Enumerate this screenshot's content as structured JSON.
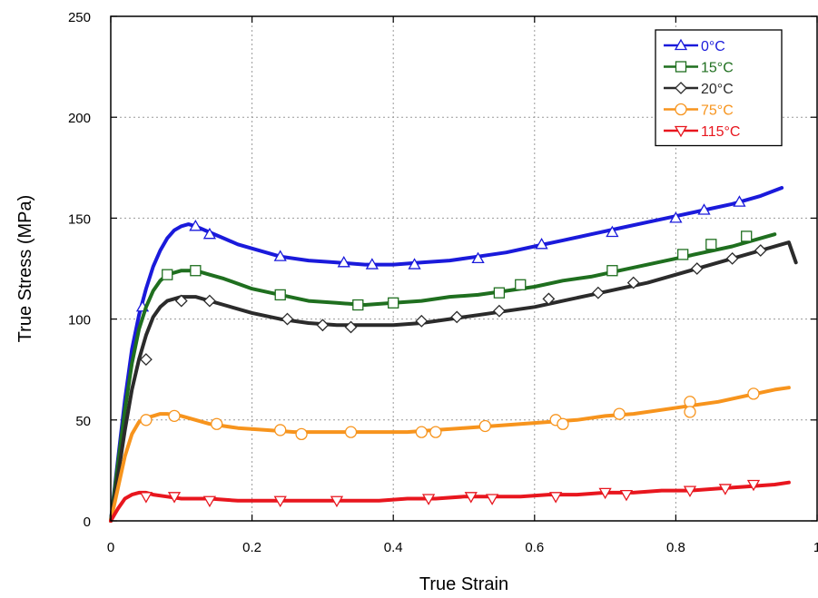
{
  "chart_data": {
    "type": "line",
    "title": "",
    "xlabel": "True Strain",
    "ylabel": "True Stress (MPa)",
    "xlim": [
      0,
      1
    ],
    "ylim": [
      0,
      250
    ],
    "xticks": [
      0,
      0.2,
      0.4,
      0.6,
      0.8,
      1
    ],
    "xtick_labels": [
      "0",
      "0.2",
      "0.4",
      "0.6",
      "0.8",
      "1"
    ],
    "yticks": [
      0,
      50,
      100,
      150,
      200,
      250
    ],
    "ytick_labels": [
      "0",
      "50",
      "100",
      "150",
      "200",
      "250"
    ],
    "grid": true,
    "legend_position": "top-right",
    "series": [
      {
        "name": "0°C",
        "color": "#1a1adb",
        "marker": "triangle-up",
        "x": [
          0,
          0.01,
          0.02,
          0.03,
          0.04,
          0.05,
          0.06,
          0.07,
          0.08,
          0.09,
          0.1,
          0.11,
          0.12,
          0.14,
          0.16,
          0.18,
          0.2,
          0.24,
          0.28,
          0.32,
          0.36,
          0.4,
          0.44,
          0.48,
          0.52,
          0.56,
          0.6,
          0.64,
          0.68,
          0.72,
          0.76,
          0.8,
          0.84,
          0.88,
          0.92,
          0.95
        ],
        "y": [
          0,
          30,
          60,
          85,
          102,
          115,
          126,
          134,
          140,
          144,
          146,
          147,
          146,
          143,
          140,
          137,
          135,
          131,
          129,
          128,
          127,
          127,
          128,
          129,
          131,
          133,
          136,
          139,
          142,
          145,
          148,
          151,
          154,
          157,
          161,
          165
        ],
        "marker_x": [
          0.045,
          0.12,
          0.14,
          0.24,
          0.33,
          0.37,
          0.43,
          0.52,
          0.61,
          0.71,
          0.8,
          0.84,
          0.89
        ],
        "marker_y": [
          106,
          146,
          142,
          131,
          128,
          127,
          127,
          130,
          137,
          143,
          150,
          154,
          158
        ]
      },
      {
        "name": "15°C",
        "color": "#1f6f1f",
        "marker": "square",
        "x": [
          0,
          0.01,
          0.02,
          0.03,
          0.04,
          0.05,
          0.06,
          0.07,
          0.08,
          0.1,
          0.12,
          0.14,
          0.16,
          0.2,
          0.24,
          0.28,
          0.32,
          0.36,
          0.4,
          0.44,
          0.48,
          0.52,
          0.56,
          0.6,
          0.64,
          0.68,
          0.72,
          0.76,
          0.8,
          0.84,
          0.88,
          0.92,
          0.94
        ],
        "y": [
          0,
          28,
          55,
          78,
          95,
          106,
          114,
          119,
          122,
          124,
          124,
          122,
          120,
          115,
          112,
          109,
          108,
          107,
          108,
          109,
          111,
          112,
          114,
          116,
          119,
          121,
          124,
          127,
          130,
          133,
          136,
          140,
          142
        ],
        "marker_x": [
          0.08,
          0.12,
          0.24,
          0.35,
          0.4,
          0.55,
          0.58,
          0.71,
          0.81,
          0.85,
          0.9
        ],
        "marker_y": [
          122,
          124,
          112,
          107,
          108,
          113,
          117,
          124,
          132,
          137,
          141
        ]
      },
      {
        "name": "20°C",
        "color": "#2b2b2b",
        "marker": "diamond",
        "x": [
          0,
          0.01,
          0.02,
          0.03,
          0.04,
          0.05,
          0.06,
          0.07,
          0.08,
          0.1,
          0.12,
          0.14,
          0.16,
          0.2,
          0.24,
          0.28,
          0.32,
          0.36,
          0.4,
          0.44,
          0.48,
          0.52,
          0.56,
          0.6,
          0.64,
          0.68,
          0.72,
          0.76,
          0.8,
          0.84,
          0.88,
          0.92,
          0.96,
          0.97
        ],
        "y": [
          0,
          22,
          45,
          65,
          80,
          92,
          101,
          106,
          109,
          111,
          111,
          109,
          107,
          103,
          100,
          98,
          97,
          97,
          97,
          98,
          100,
          102,
          104,
          106,
          109,
          112,
          115,
          118,
          122,
          126,
          130,
          134,
          138,
          128
        ],
        "marker_x": [
          0.05,
          0.1,
          0.14,
          0.25,
          0.3,
          0.34,
          0.44,
          0.49,
          0.55,
          0.62,
          0.69,
          0.74,
          0.83,
          0.88,
          0.92
        ],
        "marker_y": [
          80,
          109,
          109,
          100,
          97,
          96,
          99,
          101,
          104,
          110,
          113,
          118,
          125,
          130,
          134
        ]
      },
      {
        "name": "75°C",
        "color": "#f7941d",
        "marker": "circle",
        "x": [
          0,
          0.01,
          0.02,
          0.03,
          0.04,
          0.05,
          0.06,
          0.07,
          0.08,
          0.1,
          0.12,
          0.14,
          0.18,
          0.22,
          0.26,
          0.3,
          0.34,
          0.38,
          0.42,
          0.46,
          0.5,
          0.54,
          0.58,
          0.62,
          0.66,
          0.7,
          0.74,
          0.78,
          0.82,
          0.86,
          0.9,
          0.94,
          0.96
        ],
        "y": [
          0,
          16,
          32,
          43,
          49,
          51,
          52,
          53,
          53,
          52,
          50,
          48,
          46,
          45,
          44,
          44,
          44,
          44,
          44,
          45,
          46,
          47,
          48,
          49,
          50,
          52,
          53,
          55,
          57,
          59,
          62,
          65,
          66
        ],
        "marker_x": [
          0.05,
          0.09,
          0.15,
          0.24,
          0.27,
          0.34,
          0.44,
          0.46,
          0.53,
          0.63,
          0.64,
          0.72,
          0.82,
          0.82,
          0.91
        ],
        "marker_y": [
          50,
          52,
          48,
          45,
          43,
          44,
          44,
          44,
          47,
          50,
          48,
          53,
          59,
          54,
          63
        ]
      },
      {
        "name": "115°C",
        "color": "#e8161e",
        "marker": "triangle-down",
        "x": [
          0,
          0.01,
          0.02,
          0.03,
          0.04,
          0.05,
          0.06,
          0.08,
          0.1,
          0.14,
          0.18,
          0.22,
          0.26,
          0.3,
          0.34,
          0.38,
          0.42,
          0.46,
          0.5,
          0.54,
          0.58,
          0.62,
          0.66,
          0.7,
          0.74,
          0.78,
          0.82,
          0.86,
          0.9,
          0.94,
          0.96
        ],
        "y": [
          0,
          6,
          11,
          13,
          14,
          14,
          13,
          12,
          11,
          11,
          10,
          10,
          10,
          10,
          10,
          10,
          11,
          11,
          12,
          12,
          12,
          13,
          13,
          14,
          14,
          15,
          15,
          16,
          17,
          18,
          19
        ],
        "marker_x": [
          0.05,
          0.09,
          0.14,
          0.24,
          0.32,
          0.45,
          0.51,
          0.54,
          0.63,
          0.7,
          0.73,
          0.82,
          0.87,
          0.91
        ],
        "marker_y": [
          12,
          12,
          10,
          10,
          10,
          11,
          12,
          11,
          12,
          14,
          13,
          15,
          16,
          18
        ]
      }
    ]
  }
}
